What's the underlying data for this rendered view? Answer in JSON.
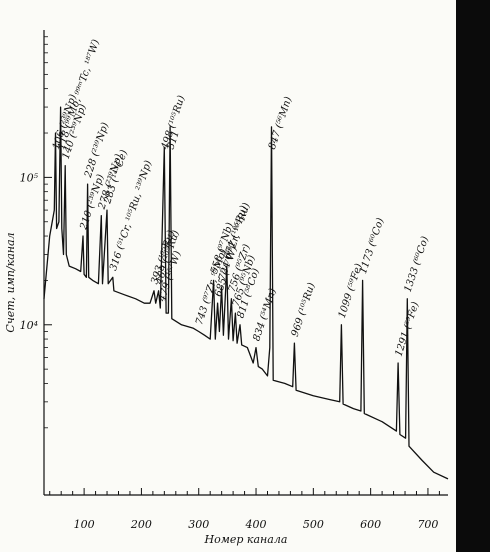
{
  "chart_data": {
    "type": "line",
    "xlabel": "Номер канала",
    "ylabel": "Счет, имп/канал",
    "x_ticks": [
      "100",
      "200",
      "300",
      "400",
      "500",
      "600",
      "700"
    ],
    "y_ticks": [
      "10⁵",
      "10⁴"
    ],
    "x_range": [
      30,
      735
    ],
    "log_y": true,
    "ylim": [
      700,
      1000000
    ],
    "grid": false,
    "series": [
      {
        "points": [
          [
            30,
            15000
          ],
          [
            40,
            40000
          ],
          [
            48,
            60000
          ],
          [
            50,
            200000
          ],
          [
            52,
            45000
          ],
          [
            56,
            50000
          ],
          [
            59,
            300000
          ],
          [
            61,
            45000
          ],
          [
            64,
            30000
          ],
          [
            67,
            120000
          ],
          [
            69,
            30000
          ],
          [
            74,
            25000
          ],
          [
            85,
            24000
          ],
          [
            94,
            23000
          ],
          [
            98,
            40000
          ],
          [
            100,
            22000
          ],
          [
            104,
            21000
          ],
          [
            106,
            90000
          ],
          [
            108,
            21000
          ],
          [
            115,
            20000
          ],
          [
            125,
            19000
          ],
          [
            130,
            55000
          ],
          [
            132,
            19000
          ],
          [
            140,
            60000
          ],
          [
            142,
            19000
          ],
          [
            150,
            21000
          ],
          [
            152,
            17000
          ],
          [
            170,
            16000
          ],
          [
            190,
            15000
          ],
          [
            205,
            14000
          ],
          [
            215,
            14000
          ],
          [
            222,
            17000
          ],
          [
            225,
            14000
          ],
          [
            230,
            17000
          ],
          [
            233,
            13000
          ],
          [
            240,
            160000
          ],
          [
            243,
            12000
          ],
          [
            247,
            12000
          ],
          [
            250,
            220000
          ],
          [
            253,
            11000
          ],
          [
            270,
            10000
          ],
          [
            290,
            9500
          ],
          [
            300,
            9000
          ],
          [
            310,
            8500
          ],
          [
            320,
            8000
          ],
          [
            326,
            20000
          ],
          [
            329,
            8000
          ],
          [
            333,
            14000
          ],
          [
            336,
            9000
          ],
          [
            340,
            18000
          ],
          [
            343,
            8500
          ],
          [
            349,
            25000
          ],
          [
            352,
            8000
          ],
          [
            357,
            15000
          ],
          [
            360,
            7800
          ],
          [
            364,
            12000
          ],
          [
            367,
            7500
          ],
          [
            372,
            10000
          ],
          [
            375,
            7300
          ],
          [
            385,
            7000
          ],
          [
            395,
            5500
          ],
          [
            400,
            7000
          ],
          [
            404,
            5200
          ],
          [
            411,
            5000
          ],
          [
            420,
            4500
          ],
          [
            424,
            7000
          ],
          [
            427,
            220000
          ],
          [
            430,
            4200
          ],
          [
            450,
            4000
          ],
          [
            464,
            3800
          ],
          [
            467,
            7500
          ],
          [
            470,
            3600
          ],
          [
            500,
            3300
          ],
          [
            530,
            3100
          ],
          [
            546,
            3000
          ],
          [
            549,
            10000
          ],
          [
            552,
            2900
          ],
          [
            570,
            2700
          ],
          [
            583,
            2600
          ],
          [
            586,
            20000
          ],
          [
            589,
            2500
          ],
          [
            620,
            2200
          ],
          [
            645,
            1900
          ],
          [
            648,
            5500
          ],
          [
            651,
            1800
          ],
          [
            661,
            1700
          ],
          [
            664,
            15000
          ],
          [
            667,
            1500
          ],
          [
            690,
            1200
          ],
          [
            710,
            1000
          ],
          [
            735,
            900
          ]
        ]
      }
    ],
    "peaks": [
      {
        "x": 50,
        "label": "106 (²³⁹Np)"
      },
      {
        "x": 59,
        "label": "118 (⁹⁹Mo, ⁹⁹ᵐTc, ¹⁸⁷W)"
      },
      {
        "x": 67,
        "label": "140 (²³⁹Np)"
      },
      {
        "x": 98,
        "label": "210 (²³⁹Np)"
      },
      {
        "x": 106,
        "label": "228 (²³⁹Np)"
      },
      {
        "x": 130,
        "label": "278 (²³⁹Np)"
      },
      {
        "x": 140,
        "label": "283 (¹⁴³Ce)"
      },
      {
        "x": 150,
        "label": "316 (⁵¹Cr, ¹⁰⁵Ru, ²³⁹Np)"
      },
      {
        "x": 222,
        "label": "393 (¹⁰⁵Ru)"
      },
      {
        "x": 230,
        "label": "469 (¹⁰⁵Ru)"
      },
      {
        "x": 235,
        "label": "479 (¹⁸⁷W)"
      },
      {
        "x": 240,
        "label": "498 (¹⁰⁵Ru)"
      },
      {
        "x": 250,
        "label": "511"
      },
      {
        "x": 326,
        "label": "558 (⁹⁷Nb)"
      },
      {
        "x": 349,
        "label": "671 (¹⁰⁵Ru)"
      },
      {
        "x": 300,
        "label": "743 (⁹⁷Zr, ⁹⁹Mo)"
      },
      {
        "x": 333,
        "label": "685 (¹⁸⁷W)"
      },
      {
        "x": 340,
        "label": "724 (⁹⁵Zr, ¹⁰⁵Ru)"
      },
      {
        "x": 357,
        "label": "756 (⁹⁵Zr)"
      },
      {
        "x": 364,
        "label": "765 (⁹⁵Nb)"
      },
      {
        "x": 372,
        "label": "811 (⁵⁸Co)"
      },
      {
        "x": 400,
        "label": "834 (⁵⁴Mn)"
      },
      {
        "x": 427,
        "label": "847 (⁵⁶Mn)"
      },
      {
        "x": 467,
        "label": "969 (¹⁰⁵Ru)"
      },
      {
        "x": 549,
        "label": "1099 (⁵⁹Fe)"
      },
      {
        "x": 586,
        "label": "1173 (⁶⁰Co)"
      },
      {
        "x": 648,
        "label": "1291 (⁵⁹Fe)"
      },
      {
        "x": 664,
        "label": "1333 (⁶⁰Co)"
      }
    ]
  }
}
